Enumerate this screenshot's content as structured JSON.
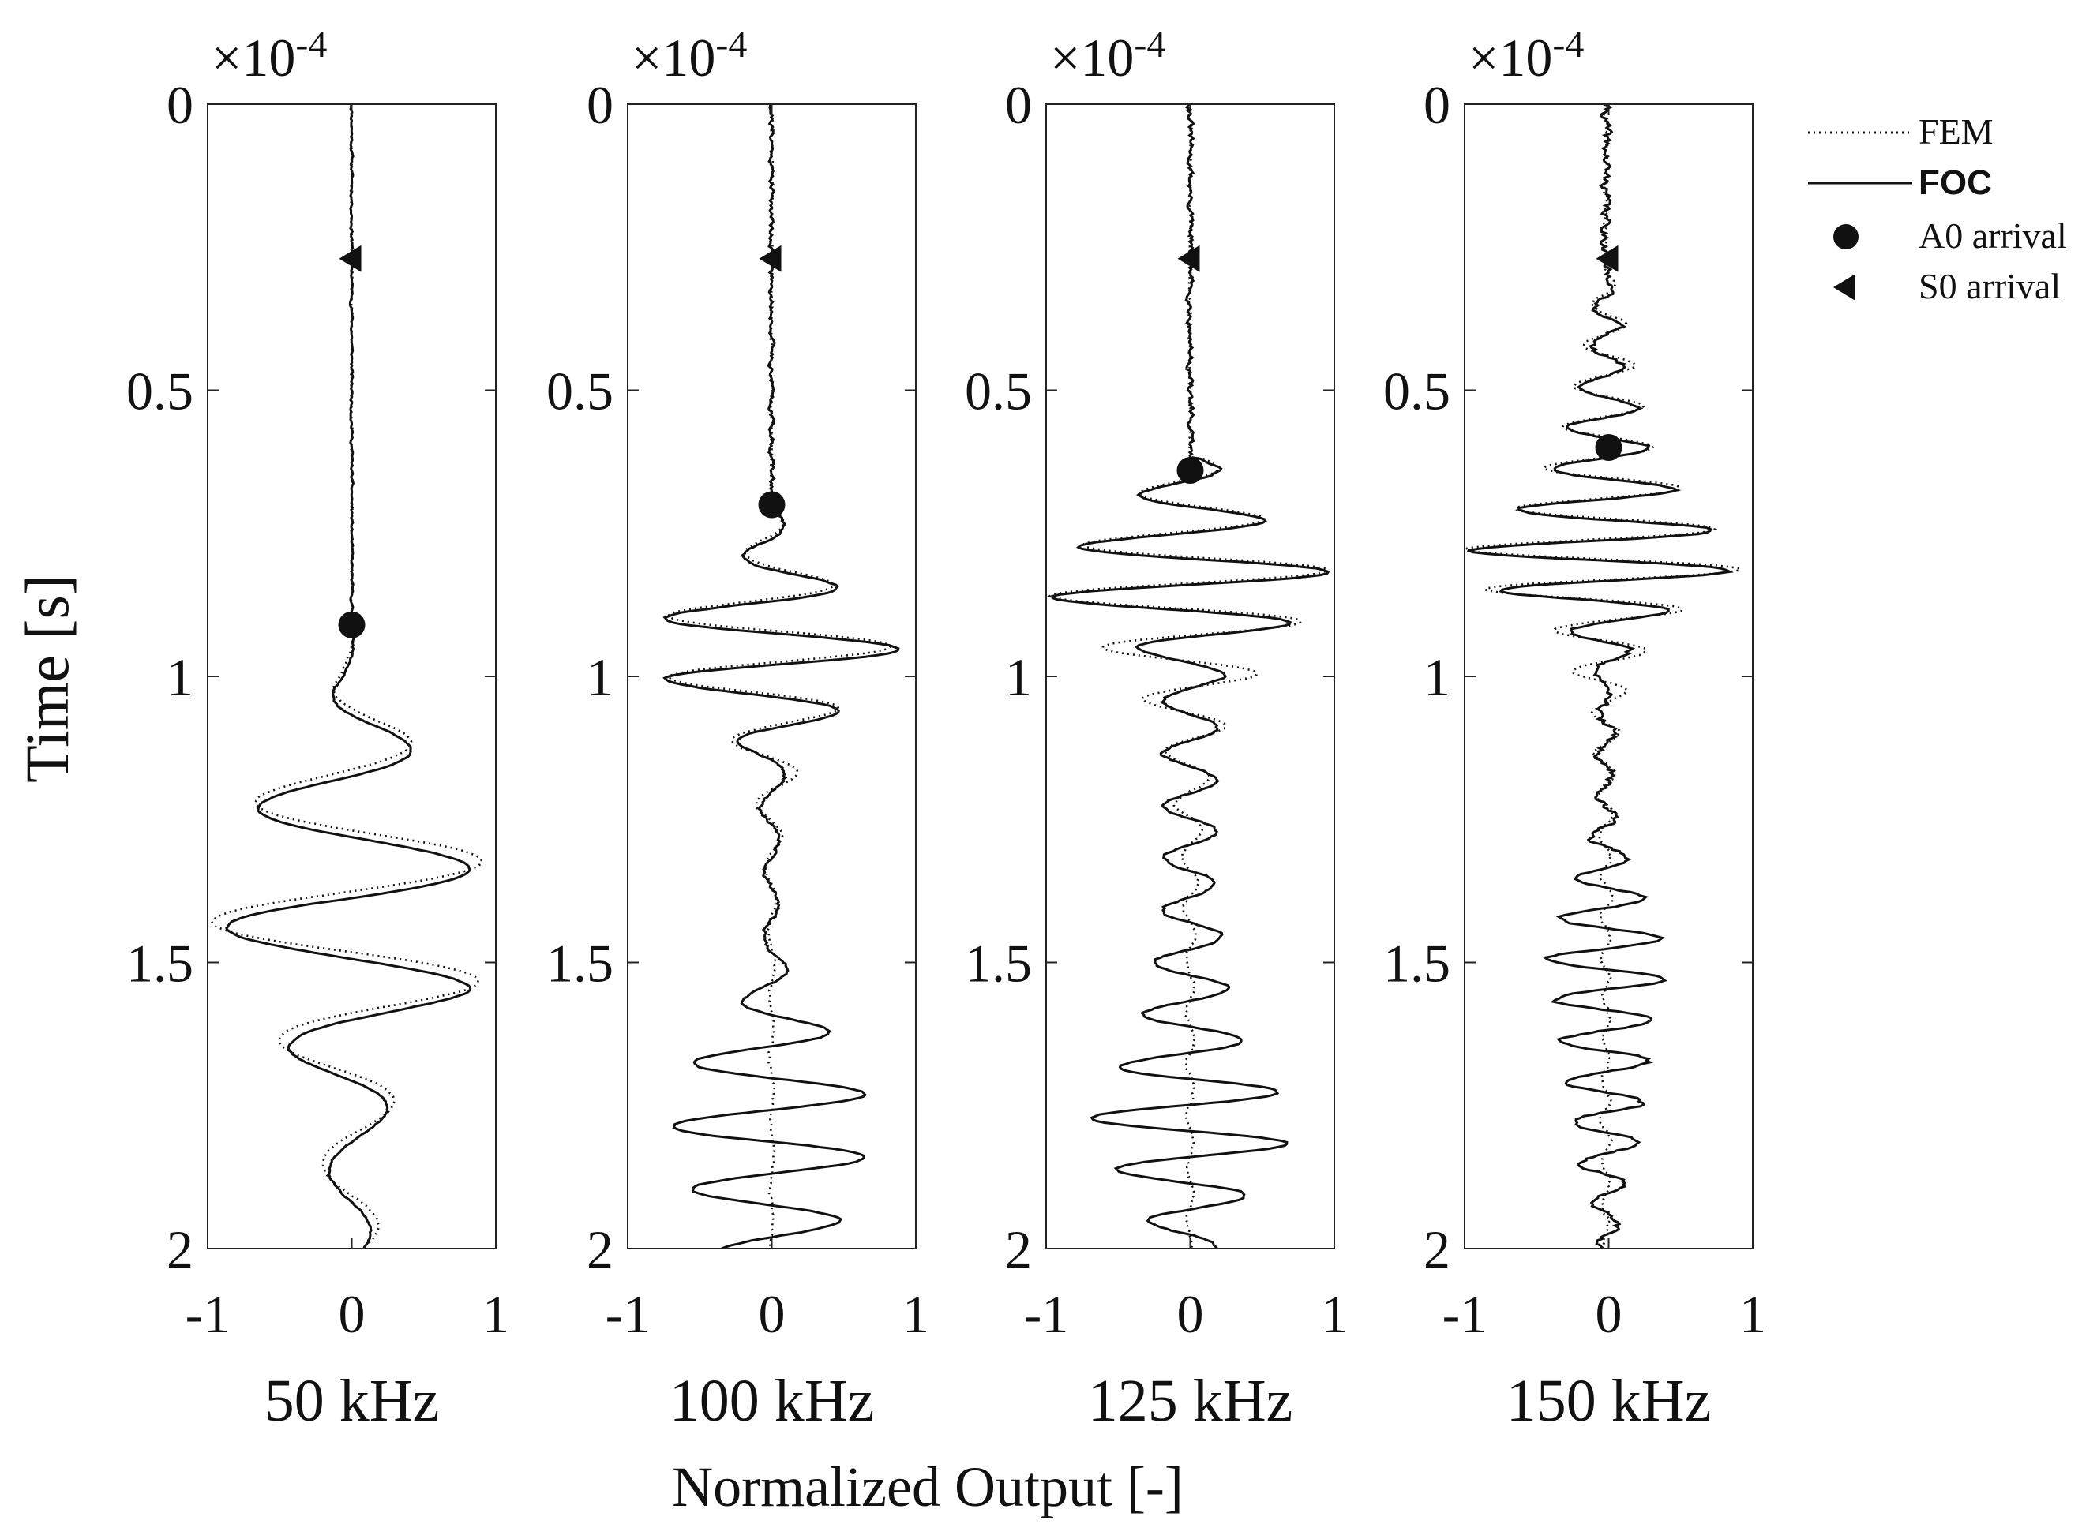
{
  "chart_data": {
    "type": "line",
    "orientation": "vertical-time",
    "ylabel": "Time [s]",
    "xlabel": "Normalized Output [-]",
    "y_multiplier": "×10",
    "y_multiplier_exponent": "-4",
    "ylim": [
      0,
      2
    ],
    "xlim": [
      -1,
      1
    ],
    "y_ticks": [
      "0",
      "0.5",
      "1",
      "1.5",
      "2"
    ],
    "x_ticks": [
      "-1",
      "0",
      "1"
    ],
    "legend": {
      "position": "top-right",
      "entries": [
        {
          "label": "FEM",
          "style": "dotted-line"
        },
        {
          "label": "FOC",
          "style": "solid-line"
        },
        {
          "label": "A0 arrival",
          "style": "circle-marker"
        },
        {
          "label": "S0 arrival",
          "style": "triangle-marker"
        }
      ]
    },
    "panels": [
      {
        "title": "50 kHz",
        "s0_arrival": 0.27,
        "a0_arrival": 0.91,
        "foc": {
          "onset": 0.93,
          "envelope": [
            [
              0,
              0.004
            ],
            [
              0.92,
              0.01
            ],
            [
              1.0,
              0.06
            ],
            [
              1.1,
              0.35
            ],
            [
              1.2,
              0.6
            ],
            [
              1.3,
              0.76
            ],
            [
              1.4,
              0.92
            ],
            [
              1.48,
              0.82
            ],
            [
              1.55,
              0.82
            ],
            [
              1.63,
              0.48
            ],
            [
              1.75,
              0.25
            ],
            [
              1.85,
              0.16
            ],
            [
              2.0,
              0.12
            ]
          ],
          "freq": 4.7,
          "phase": 2.2,
          "offset": 0.0,
          "noise": 0.006,
          "seed": 11
        },
        "fem": {
          "onset": 0.93,
          "envelope": [
            [
              0,
              0.004
            ],
            [
              0.92,
              0.01
            ],
            [
              1.0,
              0.08
            ],
            [
              1.1,
              0.38
            ],
            [
              1.2,
              0.62
            ],
            [
              1.3,
              0.88
            ],
            [
              1.4,
              0.96
            ],
            [
              1.48,
              0.98
            ],
            [
              1.55,
              0.85
            ],
            [
              1.63,
              0.52
            ],
            [
              1.75,
              0.28
            ],
            [
              1.85,
              0.2
            ],
            [
              2.0,
              0.18
            ]
          ],
          "freq": 4.7,
          "phase": 2.55,
          "offset": 0.0,
          "noise": 0.004,
          "seed": 12
        }
      },
      {
        "title": "100 kHz",
        "s0_arrival": 0.27,
        "a0_arrival": 0.7,
        "foc": {
          "onset": 0.72,
          "envelope": [
            [
              0,
              0.01
            ],
            [
              0.5,
              0.025
            ],
            [
              0.72,
              0.06
            ],
            [
              0.8,
              0.22
            ],
            [
              0.86,
              0.55
            ],
            [
              0.92,
              0.85
            ],
            [
              0.98,
              0.88
            ],
            [
              1.03,
              0.6
            ],
            [
              1.08,
              0.38
            ],
            [
              1.15,
              0.1
            ],
            [
              1.3,
              0.05
            ],
            [
              1.45,
              0.05
            ],
            [
              1.55,
              0.15
            ],
            [
              1.62,
              0.4
            ],
            [
              1.7,
              0.62
            ],
            [
              1.8,
              0.7
            ],
            [
              1.9,
              0.55
            ],
            [
              2.0,
              0.38
            ]
          ],
          "freq": 9.0,
          "phase": 1.0,
          "offset": 0.0,
          "noise": 0.012,
          "seed": 21
        },
        "fem": {
          "onset": 0.72,
          "envelope": [
            [
              0,
              0.01
            ],
            [
              0.5,
              0.025
            ],
            [
              0.72,
              0.06
            ],
            [
              0.8,
              0.22
            ],
            [
              0.86,
              0.55
            ],
            [
              0.92,
              0.85
            ],
            [
              0.98,
              0.8
            ],
            [
              1.03,
              0.6
            ],
            [
              1.08,
              0.35
            ],
            [
              1.15,
              0.2
            ],
            [
              1.25,
              0.08
            ],
            [
              1.35,
              0.04
            ],
            [
              1.45,
              0.02
            ],
            [
              2.0,
              0.01
            ]
          ],
          "freq": 9.0,
          "phase": 1.25,
          "offset": 0.0,
          "noise": 0.006,
          "seed": 22
        }
      },
      {
        "title": "125 kHz",
        "s0_arrival": 0.27,
        "a0_arrival": 0.64,
        "foc": {
          "onset": 0.62,
          "envelope": [
            [
              0,
              0.01
            ],
            [
              0.4,
              0.04
            ],
            [
              0.6,
              0.08
            ],
            [
              0.68,
              0.35
            ],
            [
              0.75,
              0.6
            ],
            [
              0.8,
              0.95
            ],
            [
              0.86,
              0.98
            ],
            [
              0.92,
              0.6
            ],
            [
              0.97,
              0.25
            ],
            [
              1.05,
              0.18
            ],
            [
              1.2,
              0.18
            ],
            [
              1.4,
              0.18
            ],
            [
              1.55,
              0.28
            ],
            [
              1.65,
              0.4
            ],
            [
              1.72,
              0.6
            ],
            [
              1.8,
              0.72
            ],
            [
              1.88,
              0.45
            ],
            [
              2.0,
              0.18
            ]
          ],
          "freq": 11.0,
          "phase": 0.5,
          "offset": 0.0,
          "noise": 0.015,
          "seed": 31
        },
        "fem": {
          "onset": 0.62,
          "envelope": [
            [
              0,
              0.01
            ],
            [
              0.4,
              0.04
            ],
            [
              0.6,
              0.08
            ],
            [
              0.68,
              0.35
            ],
            [
              0.75,
              0.6
            ],
            [
              0.8,
              0.95
            ],
            [
              0.86,
              0.98
            ],
            [
              0.92,
              0.7
            ],
            [
              0.97,
              0.55
            ],
            [
              1.05,
              0.3
            ],
            [
              1.15,
              0.15
            ],
            [
              1.3,
              0.06
            ],
            [
              1.5,
              0.03
            ],
            [
              2.0,
              0.02
            ]
          ],
          "freq": 11.0,
          "phase": 0.7,
          "offset": 0.0,
          "noise": 0.008,
          "seed": 32
        }
      },
      {
        "title": "150 kHz",
        "s0_arrival": 0.27,
        "a0_arrival": 0.6,
        "foc": {
          "onset": 0.3,
          "envelope": [
            [
              0,
              0.015
            ],
            [
              0.3,
              0.05
            ],
            [
              0.45,
              0.12
            ],
            [
              0.6,
              0.3
            ],
            [
              0.68,
              0.5
            ],
            [
              0.74,
              0.7
            ],
            [
              0.78,
              0.95
            ],
            [
              0.84,
              0.8
            ],
            [
              0.9,
              0.3
            ],
            [
              1.0,
              0.06
            ],
            [
              1.2,
              0.05
            ],
            [
              1.3,
              0.12
            ],
            [
              1.4,
              0.3
            ],
            [
              1.5,
              0.42
            ],
            [
              1.6,
              0.34
            ],
            [
              1.7,
              0.28
            ],
            [
              1.8,
              0.22
            ],
            [
              1.9,
              0.12
            ],
            [
              2.0,
              0.06
            ]
          ],
          "freq": 14.0,
          "phase": 0.2,
          "offset": -0.02,
          "noise": 0.025,
          "seed": 41
        },
        "fem": {
          "onset": 0.3,
          "envelope": [
            [
              0,
              0.015
            ],
            [
              0.3,
              0.06
            ],
            [
              0.45,
              0.18
            ],
            [
              0.6,
              0.32
            ],
            [
              0.68,
              0.55
            ],
            [
              0.74,
              0.75
            ],
            [
              0.78,
              0.98
            ],
            [
              0.84,
              0.9
            ],
            [
              0.9,
              0.4
            ],
            [
              0.95,
              0.3
            ],
            [
              1.05,
              0.1
            ],
            [
              1.2,
              0.05
            ],
            [
              1.5,
              0.03
            ],
            [
              2.0,
              0.02
            ]
          ],
          "freq": 14.0,
          "phase": 0.4,
          "offset": -0.02,
          "noise": 0.012,
          "seed": 42
        }
      }
    ]
  }
}
